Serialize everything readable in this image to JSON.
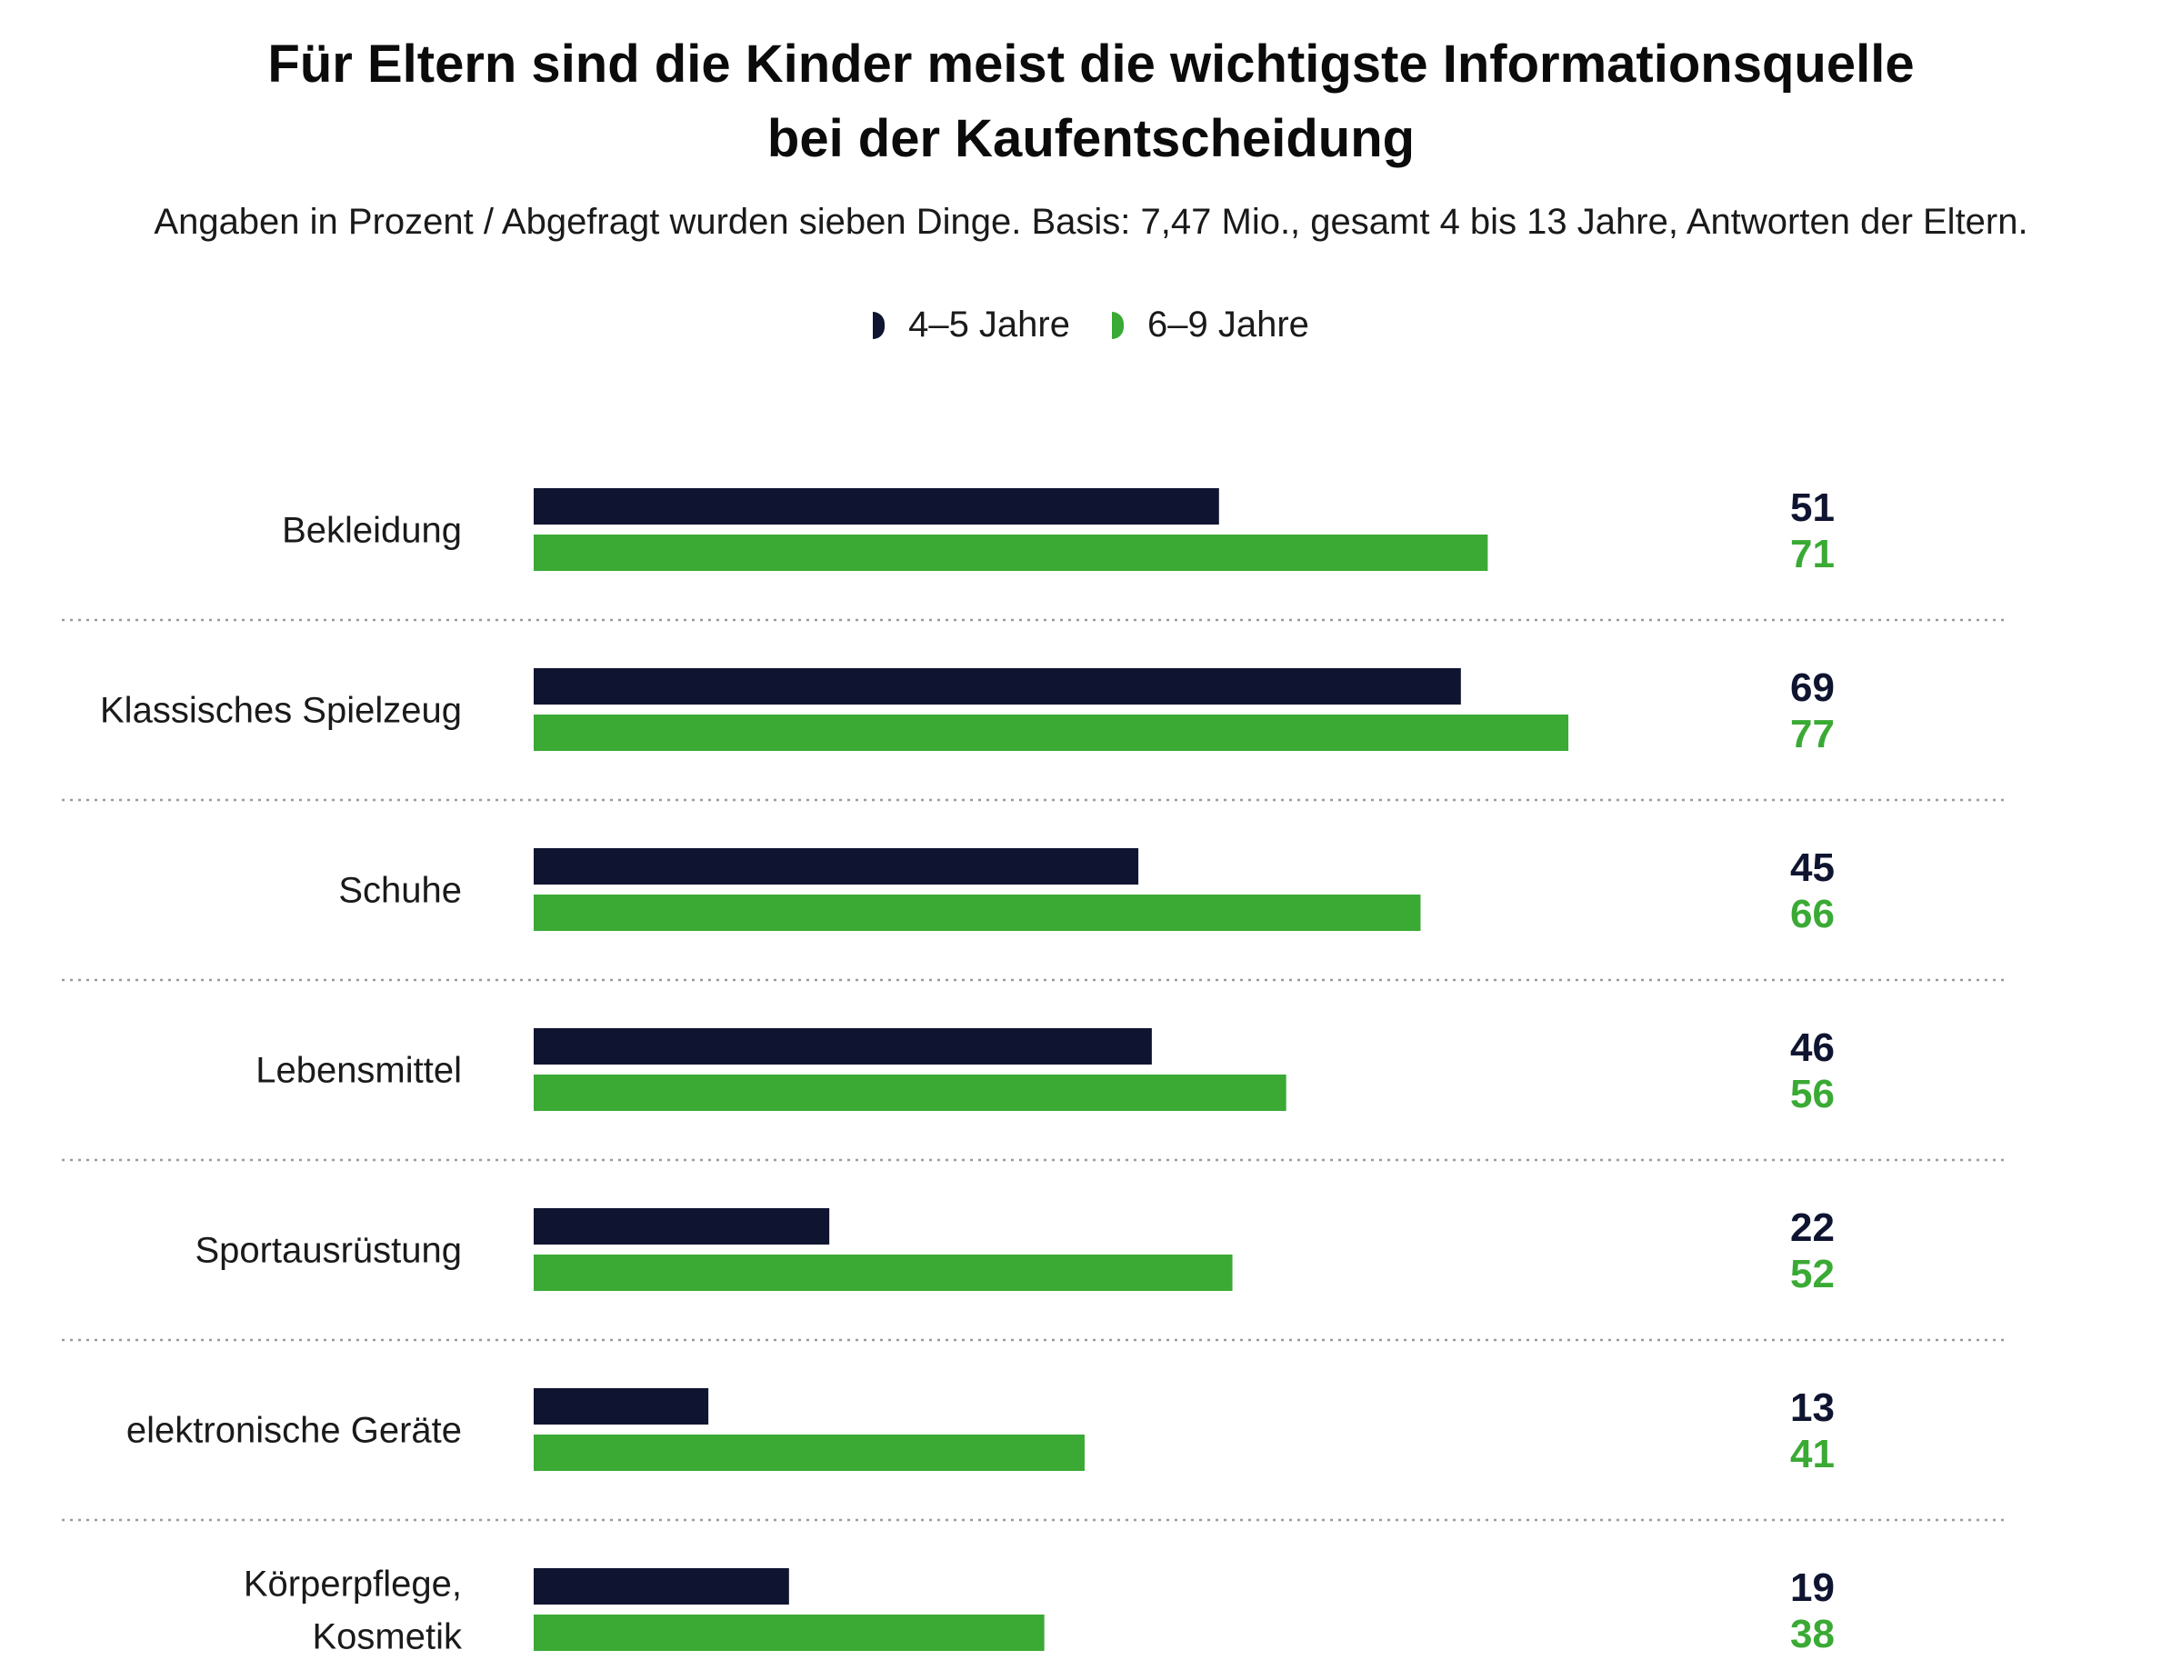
{
  "colors": {
    "series_dark": "#0f1530",
    "series_green": "#3aaa35",
    "separator": "#9a9a9a"
  },
  "chart_data": {
    "type": "bar",
    "orientation": "horizontal",
    "title": "Für Eltern sind die Kinder meist die wichtigste Informationsquelle bei der Kaufentscheidung",
    "title_lines": [
      "Für Eltern sind die Kinder meist die wichtigste Informationsquelle",
      "bei der Kaufentscheidung"
    ],
    "subtitle": "Angaben in Prozent  /  Abgefragt wurden sieben Dinge. Basis: 7,47 Mio., gesamt 4 bis 13 Jahre, Antworten der Eltern.",
    "categories": [
      "Bekleidung",
      "Klassisches Spielzeug",
      "Schuhe",
      "Lebensmittel",
      "Sportausrüstung",
      "elektronische Geräte",
      "Körperpflege, Kosmetik"
    ],
    "category_lines": [
      [
        "Bekleidung"
      ],
      [
        "Klassisches Spielzeug"
      ],
      [
        "Schuhe"
      ],
      [
        "Lebensmittel"
      ],
      [
        "Sportausrüstung"
      ],
      [
        "elektronische Geräte"
      ],
      [
        "Körperpflege,",
        "Kosmetik"
      ]
    ],
    "series": [
      {
        "name": "4–5 Jahre",
        "color": "#0f1530",
        "values": [
          51,
          69,
          45,
          46,
          22,
          13,
          19
        ]
      },
      {
        "name": "6–9 Jahre",
        "color": "#3aaa35",
        "values": [
          71,
          77,
          66,
          56,
          52,
          41,
          38
        ]
      }
    ],
    "xlim": [
      0,
      100
    ],
    "xlabel": "",
    "ylabel": "",
    "grid": false,
    "legend_position": "top-center",
    "data_labels": "right"
  }
}
